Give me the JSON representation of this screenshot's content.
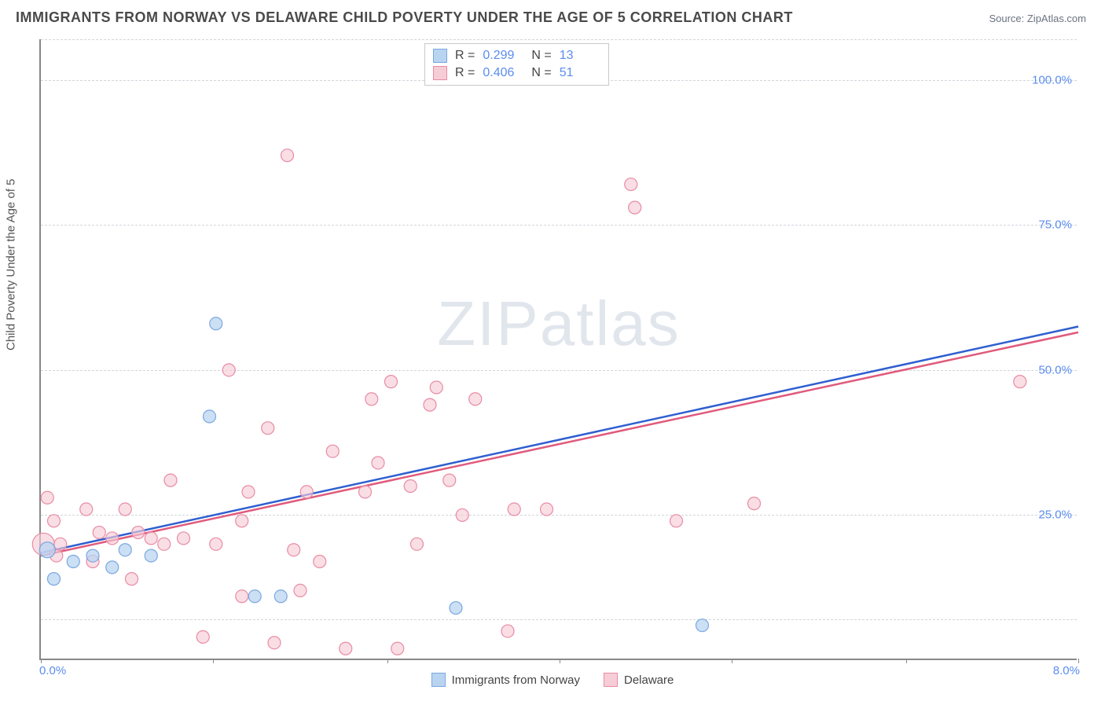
{
  "title": "IMMIGRANTS FROM NORWAY VS DELAWARE CHILD POVERTY UNDER THE AGE OF 5 CORRELATION CHART",
  "source_label": "Source: ",
  "source_name": "ZipAtlas.com",
  "y_axis_label": "Child Poverty Under the Age of 5",
  "watermark": "ZIPatlas",
  "chart": {
    "type": "scatter",
    "xlim": [
      0,
      8
    ],
    "ylim": [
      0,
      107
    ],
    "xticks": [
      {
        "v": 0.0,
        "label": "0.0%"
      },
      {
        "v": 1.33,
        "label": ""
      },
      {
        "v": 2.67,
        "label": ""
      },
      {
        "v": 4.0,
        "label": ""
      },
      {
        "v": 5.33,
        "label": ""
      },
      {
        "v": 6.67,
        "label": ""
      },
      {
        "v": 8.0,
        "label": "8.0%"
      }
    ],
    "yticks": [
      {
        "v": 25,
        "label": "25.0%"
      },
      {
        "v": 50,
        "label": "50.0%"
      },
      {
        "v": 75,
        "label": "75.0%"
      },
      {
        "v": 100,
        "label": "100.0%"
      }
    ],
    "grid_y": [
      7,
      25,
      50,
      75,
      100,
      107
    ],
    "background_color": "#ffffff",
    "grid_color": "#d1d5db",
    "series": [
      {
        "name": "Immigrants from Norway",
        "fill": "#b9d4f1",
        "stroke": "#7aa8de",
        "line_color": "#2f5fd0",
        "marker_r": 8,
        "opacity": 0.75,
        "R": "0.299",
        "N": "13",
        "regression": {
          "x1": 0.0,
          "y1": 18.5,
          "x2": 8.0,
          "y2": 57.5
        },
        "points": [
          {
            "x": 0.05,
            "y": 19,
            "r": 10
          },
          {
            "x": 0.1,
            "y": 14,
            "r": 8
          },
          {
            "x": 0.25,
            "y": 17,
            "r": 8
          },
          {
            "x": 0.4,
            "y": 18,
            "r": 8
          },
          {
            "x": 0.55,
            "y": 16,
            "r": 8
          },
          {
            "x": 0.65,
            "y": 19,
            "r": 8
          },
          {
            "x": 0.85,
            "y": 18,
            "r": 8
          },
          {
            "x": 1.3,
            "y": 42,
            "r": 8
          },
          {
            "x": 1.35,
            "y": 58,
            "r": 8
          },
          {
            "x": 1.65,
            "y": 11,
            "r": 8
          },
          {
            "x": 1.85,
            "y": 11,
            "r": 8
          },
          {
            "x": 3.2,
            "y": 9,
            "r": 8
          },
          {
            "x": 5.1,
            "y": 6,
            "r": 8
          }
        ]
      },
      {
        "name": "Delaware",
        "fill": "#f6cdd7",
        "stroke": "#e98ba3",
        "line_color": "#e05a7c",
        "marker_r": 8,
        "opacity": 0.65,
        "R": "0.406",
        "N": "51",
        "regression": {
          "x1": 0.0,
          "y1": 18.0,
          "x2": 8.0,
          "y2": 56.5
        },
        "points": [
          {
            "x": 0.02,
            "y": 20,
            "r": 14
          },
          {
            "x": 0.05,
            "y": 28,
            "r": 8
          },
          {
            "x": 0.1,
            "y": 24,
            "r": 8
          },
          {
            "x": 0.12,
            "y": 18,
            "r": 8
          },
          {
            "x": 0.15,
            "y": 20,
            "r": 8
          },
          {
            "x": 0.35,
            "y": 26,
            "r": 8
          },
          {
            "x": 0.4,
            "y": 17,
            "r": 8
          },
          {
            "x": 0.45,
            "y": 22,
            "r": 8
          },
          {
            "x": 0.55,
            "y": 21,
            "r": 8
          },
          {
            "x": 0.65,
            "y": 26,
            "r": 8
          },
          {
            "x": 0.7,
            "y": 14,
            "r": 8
          },
          {
            "x": 0.75,
            "y": 22,
            "r": 8
          },
          {
            "x": 0.85,
            "y": 21,
            "r": 8
          },
          {
            "x": 0.95,
            "y": 20,
            "r": 8
          },
          {
            "x": 1.0,
            "y": 31,
            "r": 8
          },
          {
            "x": 1.1,
            "y": 21,
            "r": 8
          },
          {
            "x": 1.25,
            "y": 4,
            "r": 8
          },
          {
            "x": 1.35,
            "y": 20,
            "r": 8
          },
          {
            "x": 1.45,
            "y": 50,
            "r": 8
          },
          {
            "x": 1.55,
            "y": 11,
            "r": 8
          },
          {
            "x": 1.6,
            "y": 29,
            "r": 8
          },
          {
            "x": 1.75,
            "y": 40,
            "r": 8
          },
          {
            "x": 1.8,
            "y": 3,
            "r": 8
          },
          {
            "x": 1.9,
            "y": 87,
            "r": 8
          },
          {
            "x": 1.95,
            "y": 19,
            "r": 8
          },
          {
            "x": 2.05,
            "y": 29,
            "r": 8
          },
          {
            "x": 2.15,
            "y": 17,
            "r": 8
          },
          {
            "x": 2.25,
            "y": 36,
            "r": 8
          },
          {
            "x": 2.35,
            "y": 2,
            "r": 8
          },
          {
            "x": 2.5,
            "y": 29,
            "r": 8
          },
          {
            "x": 2.55,
            "y": 45,
            "r": 8
          },
          {
            "x": 2.6,
            "y": 34,
            "r": 8
          },
          {
            "x": 2.7,
            "y": 48,
            "r": 8
          },
          {
            "x": 2.75,
            "y": 2,
            "r": 8
          },
          {
            "x": 2.85,
            "y": 30,
            "r": 8
          },
          {
            "x": 2.9,
            "y": 20,
            "r": 8
          },
          {
            "x": 3.0,
            "y": 44,
            "r": 8
          },
          {
            "x": 3.05,
            "y": 47,
            "r": 8
          },
          {
            "x": 3.15,
            "y": 31,
            "r": 8
          },
          {
            "x": 3.25,
            "y": 25,
            "r": 8
          },
          {
            "x": 3.35,
            "y": 45,
            "r": 8
          },
          {
            "x": 3.6,
            "y": 5,
            "r": 8
          },
          {
            "x": 3.65,
            "y": 26,
            "r": 8
          },
          {
            "x": 3.9,
            "y": 26,
            "r": 8
          },
          {
            "x": 4.55,
            "y": 82,
            "r": 8
          },
          {
            "x": 4.58,
            "y": 78,
            "r": 8
          },
          {
            "x": 4.9,
            "y": 24,
            "r": 8
          },
          {
            "x": 5.5,
            "y": 27,
            "r": 8
          },
          {
            "x": 7.55,
            "y": 48,
            "r": 8
          },
          {
            "x": 2.0,
            "y": 12,
            "r": 8
          },
          {
            "x": 1.55,
            "y": 24,
            "r": 8
          }
        ]
      }
    ],
    "legend_bottom": [
      {
        "name": "Immigrants from Norway",
        "fill": "#b9d4f1",
        "stroke": "#7aa8de"
      },
      {
        "name": "Delaware",
        "fill": "#f6cdd7",
        "stroke": "#e98ba3"
      }
    ]
  }
}
